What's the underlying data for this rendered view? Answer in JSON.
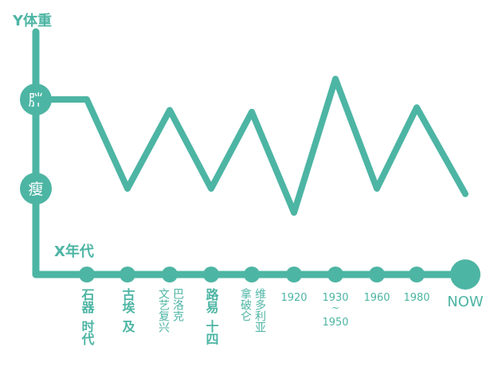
{
  "chart_data": {
    "type": "line",
    "title": "",
    "ylabel": "Y体重",
    "xlabel": "X年代",
    "y_levels": [
      "瘦",
      "胖"
    ],
    "ylim": [
      0,
      1
    ],
    "categories": [
      "石器时代",
      "古埃及",
      "文艺复兴",
      "巴洛克",
      "路易十四",
      "拿破仑",
      "维多利亚",
      "1920",
      "1930-1950",
      "1960",
      "1980",
      "NOW"
    ],
    "x_label_columns": [
      [
        "石器",
        "时代"
      ],
      [
        "古埃",
        "及"
      ],
      [
        "巴洛克",
        "文艺复兴"
      ],
      [
        "路易",
        "十四"
      ],
      [
        "拿破仑"
      ],
      [
        "维多利亚"
      ],
      [
        "1920"
      ],
      [
        "1930",
        "~",
        "1950"
      ],
      [
        "1960"
      ],
      [
        "1980"
      ],
      [
        "NOW"
      ]
    ],
    "series": [
      {
        "points": [
          [
            0,
            1.0
          ],
          [
            1,
            1.0
          ],
          [
            2,
            0.0
          ],
          [
            3,
            0.88
          ],
          [
            4,
            0.0
          ],
          [
            5,
            0.86
          ],
          [
            6,
            -0.27
          ],
          [
            7,
            1.23
          ],
          [
            8,
            0.0
          ],
          [
            9,
            0.91
          ],
          [
            10,
            -0.06
          ]
        ]
      }
    ],
    "colors": {
      "line": "#4db5a4",
      "axis": "#4db5a4",
      "label": "#4db5a4",
      "marker_text": "#ffffff"
    }
  }
}
